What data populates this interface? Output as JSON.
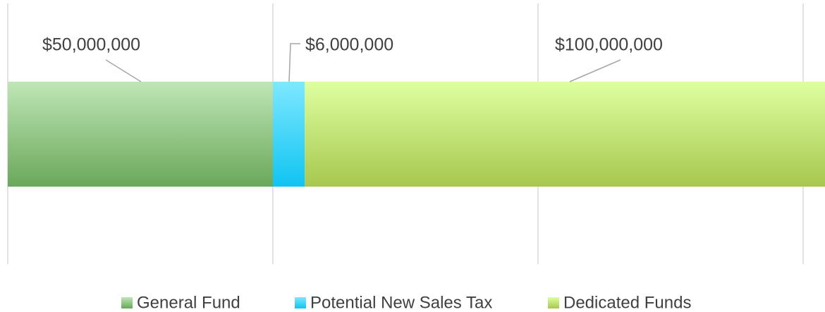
{
  "chart_data": {
    "type": "stacked-bar",
    "orientation": "horizontal",
    "series": [
      {
        "name": "General Fund",
        "color": "#6aa85a",
        "values": [
          50000000
        ],
        "value_labels": [
          "$50,000,000"
        ]
      },
      {
        "name": "Potential New Sales Tax",
        "color": "#10c4f2",
        "values": [
          6000000
        ],
        "value_labels": [
          "$6,000,000"
        ]
      },
      {
        "name": "Dedicated Funds",
        "color": "#a7c74f",
        "values": [
          100000000
        ],
        "value_labels": [
          "$100,000,000"
        ]
      }
    ],
    "xlim": [
      0,
      150000000
    ],
    "xticks": [
      0,
      50000000,
      100000000,
      150000000
    ],
    "grid": true,
    "legend": "bottom"
  }
}
